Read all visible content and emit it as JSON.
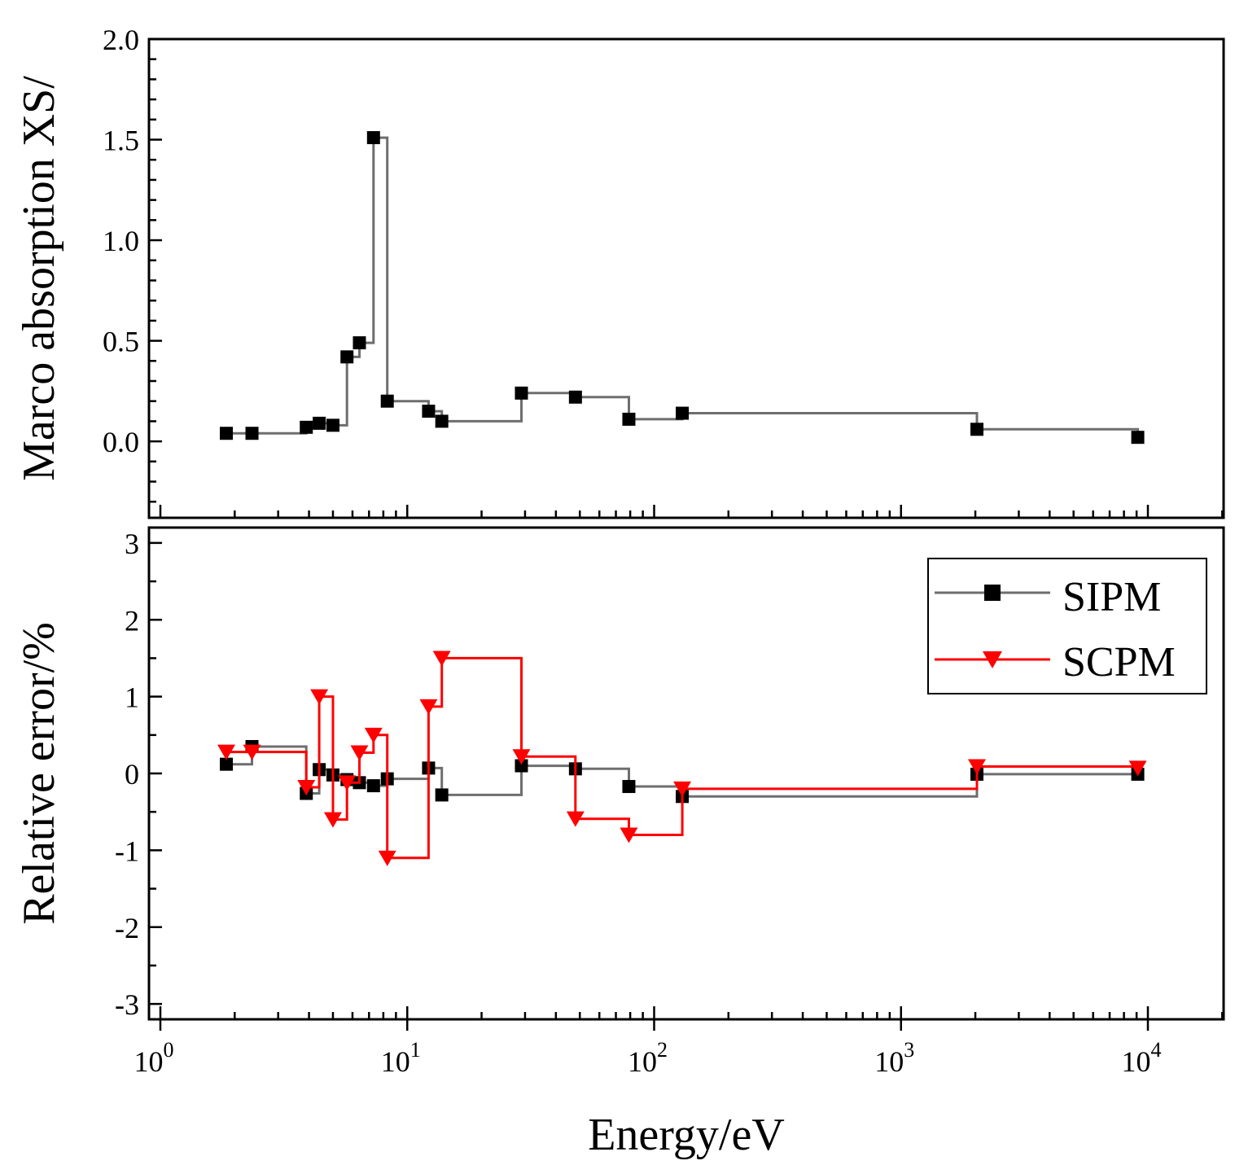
{
  "chart_data": [
    {
      "type": "line",
      "step": true,
      "panel": "top",
      "title": "",
      "xscale": "log",
      "xlim": [
        1,
        20000
      ],
      "ylim": [
        -0.38,
        2.0
      ],
      "ylabel": "Marco absorption XS/",
      "yticks": [
        0.0,
        0.5,
        1.0,
        1.5,
        2.0
      ],
      "ytick_labels": [
        "0.0",
        "0.5",
        "1.0",
        "1.5",
        "2.0"
      ],
      "series": [
        {
          "name": "SIPM",
          "color": "#6e6e6e",
          "marker": "square",
          "marker_color": "#000000",
          "x": [
            1.85,
            2.35,
            3.9,
            4.4,
            5.0,
            5.7,
            6.4,
            7.3,
            8.3,
            12.2,
            13.8,
            29.0,
            48.0,
            79.0,
            130.0,
            2030.0,
            9100.0
          ],
          "y": [
            0.04,
            0.04,
            0.07,
            0.09,
            0.08,
            0.42,
            0.49,
            1.51,
            0.2,
            0.15,
            0.1,
            0.24,
            0.22,
            0.11,
            0.14,
            0.06,
            0.02
          ]
        }
      ]
    },
    {
      "type": "line",
      "step": true,
      "panel": "bottom",
      "title": "",
      "xscale": "log",
      "xlim": [
        1,
        20000
      ],
      "ylim": [
        -3.2,
        3.2
      ],
      "xlabel": "Energy/eV",
      "ylabel": "Relative error/%",
      "xtick_bases": [
        "10",
        "10",
        "10",
        "10",
        "10"
      ],
      "xtick_exponents": [
        "0",
        "1",
        "2",
        "3",
        "4"
      ],
      "yticks": [
        -3,
        -2,
        -1,
        0,
        1,
        2,
        3
      ],
      "ytick_labels": [
        "-3",
        "-2",
        "-1",
        "0",
        "1",
        "2",
        "3"
      ],
      "legend": {
        "position": "top-right",
        "entries": [
          "SIPM",
          "SCPM"
        ]
      },
      "series": [
        {
          "name": "SIPM",
          "color": "#6e6e6e",
          "marker": "square",
          "marker_color": "#000000",
          "x": [
            1.85,
            2.35,
            3.9,
            4.4,
            5.0,
            5.7,
            6.4,
            7.3,
            8.3,
            12.2,
            13.8,
            29.0,
            48.0,
            79.0,
            130.0,
            2030.0,
            9100.0
          ],
          "y": [
            0.12,
            0.35,
            -0.26,
            0.05,
            -0.02,
            -0.08,
            -0.12,
            -0.16,
            -0.07,
            0.07,
            -0.28,
            0.1,
            0.06,
            -0.17,
            -0.3,
            -0.01,
            -0.01
          ]
        },
        {
          "name": "SCPM",
          "color": "#ff0000",
          "marker": "triangle-down",
          "marker_color": "#ff0000",
          "x": [
            1.85,
            2.35,
            3.9,
            4.4,
            5.0,
            5.7,
            6.4,
            7.3,
            8.3,
            12.2,
            13.8,
            29.0,
            48.0,
            79.0,
            130.0,
            2030.0,
            9100.0
          ],
          "y": [
            0.28,
            0.28,
            -0.18,
            1.0,
            -0.6,
            -0.12,
            0.27,
            0.5,
            -1.1,
            0.87,
            1.5,
            0.22,
            -0.59,
            -0.8,
            -0.2,
            0.09,
            0.07
          ]
        }
      ]
    }
  ]
}
